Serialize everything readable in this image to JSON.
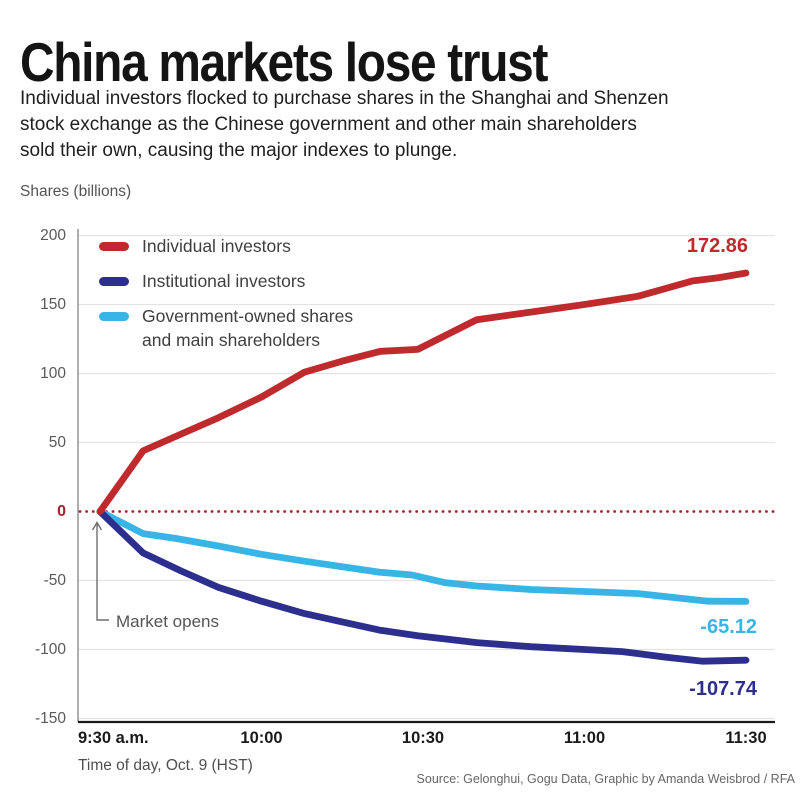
{
  "header": {
    "title": "China markets lose trust",
    "subtitle_lines": [
      "Individual investors flocked to purchase shares in the Shanghai and Shenzen",
      "stock exchange as the Chinese government and other main shareholders",
      "sold their own, causing the major indexes to plunge."
    ],
    "units_label": "Shares (billions)"
  },
  "legend": {
    "individual": "Individual investors",
    "institutional": "Institutional investors",
    "government_line1": "Government-owned shares",
    "government_line2": "and main shareholders"
  },
  "annotations": {
    "market_opens": "Market opens"
  },
  "footer": {
    "xaxis_caption": "Time of day, Oct. 9 (HST)",
    "source": "Source: Gelonghui, Gogu Data, Graphic by Amanda Weisbrod / RFA"
  },
  "chart_data": {
    "type": "line",
    "title": "China markets lose trust",
    "ylabel": "Shares (billions)",
    "xlabel": "Time of day, Oct. 9 (HST)",
    "x_unit": "minutes after 9:30 a.m.",
    "x_ticks": [
      {
        "label": "9:30 a.m.",
        "t": 0
      },
      {
        "label": "10:00",
        "t": 30
      },
      {
        "label": "10:30",
        "t": 60
      },
      {
        "label": "11:00",
        "t": 90
      },
      {
        "label": "11:30",
        "t": 120
      }
    ],
    "y_ticks": [
      200,
      150,
      100,
      50,
      0,
      -50,
      -100,
      -150
    ],
    "ylim": [
      -153,
      203
    ],
    "xlim_minutes": [
      0,
      120
    ],
    "grid": true,
    "legend_position": "top-left-inside",
    "grid_color": "#e3e3e3",
    "axis_color": "#8c8c8c",
    "baseline_color": "#1a1a1a",
    "zero_line_color": "#a8262b",
    "zero_line_style": "dotted",
    "series": [
      {
        "name": "Individual investors",
        "color": "#bf2a2d",
        "end_value": 172.86,
        "end_label": "172.86",
        "points": [
          [
            0,
            0
          ],
          [
            8,
            44
          ],
          [
            15,
            56
          ],
          [
            22,
            68
          ],
          [
            30,
            83
          ],
          [
            38,
            101
          ],
          [
            45,
            109
          ],
          [
            52,
            116
          ],
          [
            59,
            117.5
          ],
          [
            70,
            139
          ],
          [
            80,
            144.5
          ],
          [
            90,
            150
          ],
          [
            100,
            156
          ],
          [
            110,
            167
          ],
          [
            115,
            169.5
          ],
          [
            120,
            172.86
          ]
        ]
      },
      {
        "name": "Institutional investors",
        "color": "#2d2f8f",
        "end_value": -107.74,
        "end_label": "-107.74",
        "points": [
          [
            0,
            0
          ],
          [
            8,
            -30
          ],
          [
            15,
            -43
          ],
          [
            22,
            -55
          ],
          [
            30,
            -65
          ],
          [
            38,
            -74
          ],
          [
            45,
            -80
          ],
          [
            52,
            -86
          ],
          [
            59,
            -90
          ],
          [
            70,
            -95
          ],
          [
            80,
            -98
          ],
          [
            90,
            -100
          ],
          [
            97,
            -101.5
          ],
          [
            105,
            -105.5
          ],
          [
            112,
            -108.5
          ],
          [
            120,
            -107.74
          ]
        ]
      },
      {
        "name": "Government-owned shares and main shareholders",
        "color": "#39b4e6",
        "end_value": -65.12,
        "end_label": "-65.12",
        "points": [
          [
            0,
            0
          ],
          [
            8,
            -16
          ],
          [
            14,
            -19.5
          ],
          [
            22,
            -25
          ],
          [
            30,
            -31
          ],
          [
            38,
            -36
          ],
          [
            45,
            -40
          ],
          [
            52,
            -44
          ],
          [
            58,
            -46
          ],
          [
            64,
            -51.5
          ],
          [
            70,
            -54
          ],
          [
            80,
            -56.5
          ],
          [
            90,
            -58
          ],
          [
            100,
            -59.5
          ],
          [
            107,
            -62.5
          ],
          [
            113,
            -65
          ],
          [
            120,
            -65.12
          ]
        ]
      }
    ]
  }
}
